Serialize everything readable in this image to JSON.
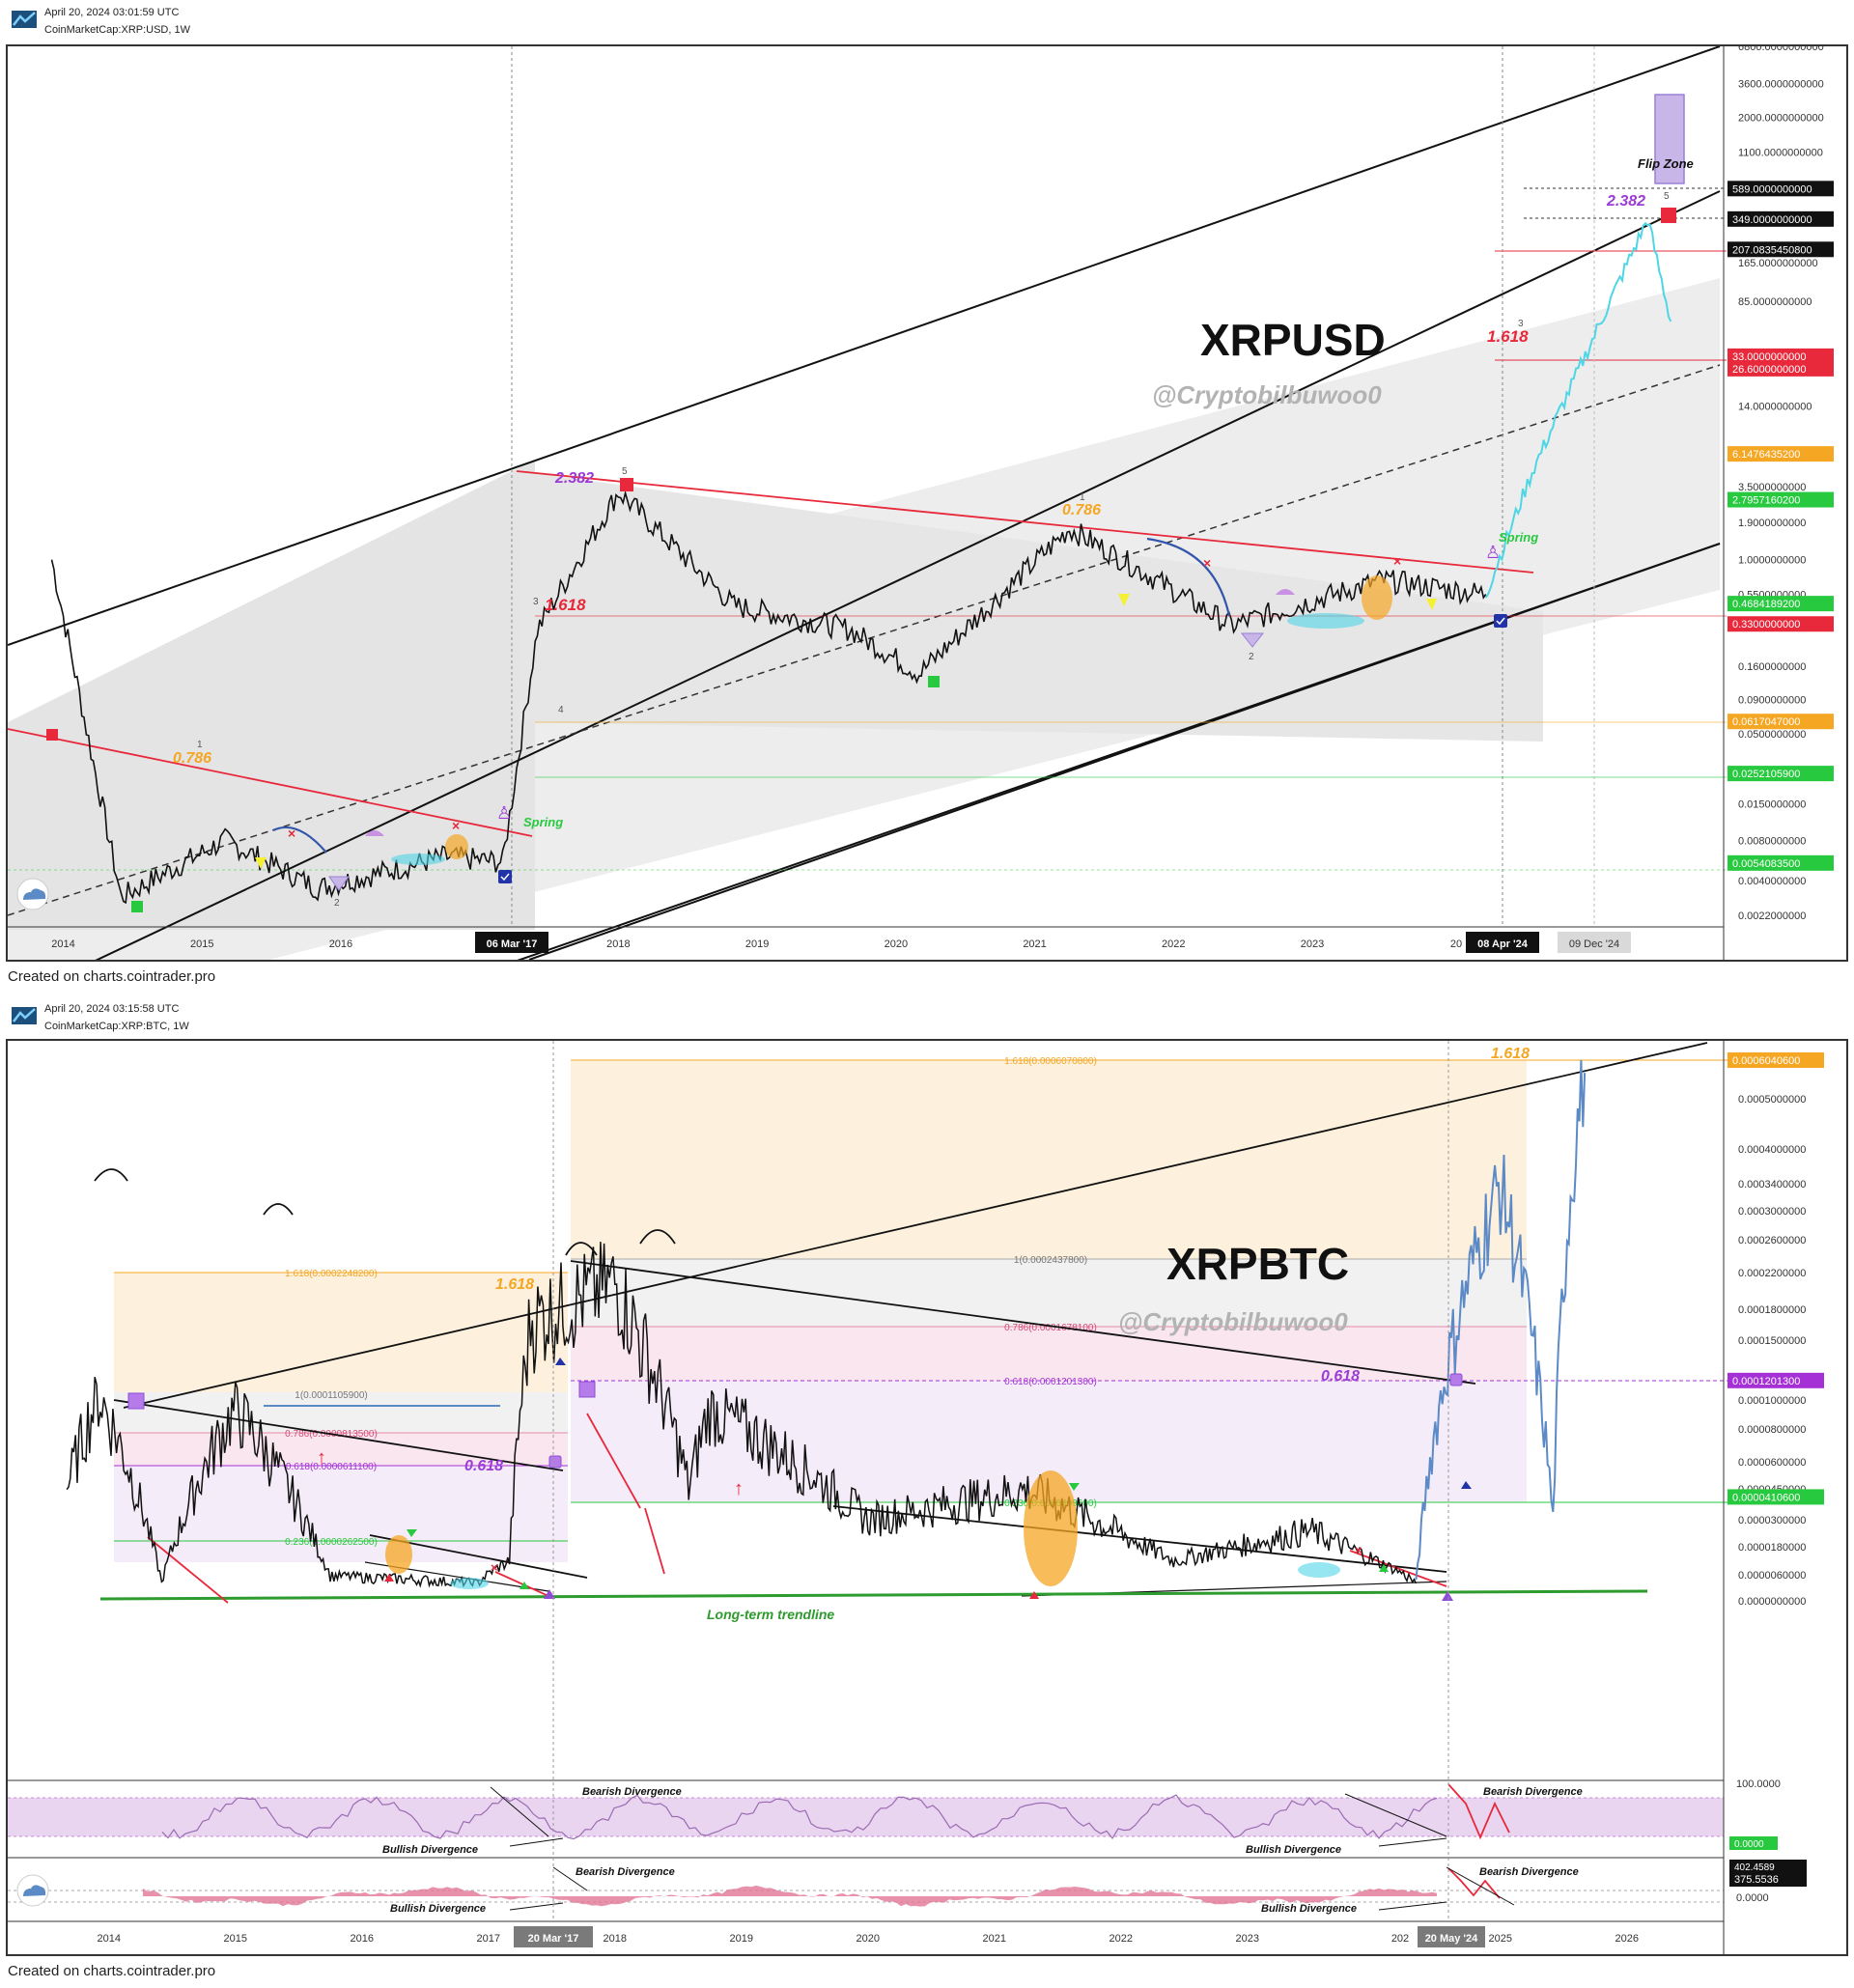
{
  "charts": [
    {
      "timestamp": "April 20, 2024 03:01:59 UTC",
      "symbol": "CoinMarketCap:XRP:USD, 1W",
      "watermark": "XRPUSD",
      "handle": "@Cryptobilbuwoo0",
      "footer": "Created on charts.cointrader.pro",
      "x_labels": [
        "2014",
        "2015",
        "2016",
        "2018",
        "2019",
        "2020",
        "2021",
        "2022",
        "2023"
      ],
      "x_label_partial": "20",
      "marker_labels": [
        "06 Mar '17",
        "08 Apr '24",
        "09 Dec '24"
      ],
      "y_labels": [
        "6800.0000000000",
        "3600.0000000000",
        "2000.0000000000",
        "1100.0000000000",
        "165.0000000000",
        "85.0000000000",
        "14.0000000000",
        "3.5000000000",
        "1.9000000000",
        "1.0000000000",
        "0.5500000000",
        "0.1600000000",
        "0.0900000000",
        "0.0500000000",
        "0.0150000000",
        "0.0080000000",
        "0.0040000000",
        "0.0022000000"
      ],
      "price_tags": [
        {
          "text": "589.0000000000",
          "color": "#111111"
        },
        {
          "text": "349.0000000000",
          "color": "#111111"
        },
        {
          "text": "207.0835450800",
          "color": "#111111"
        },
        {
          "text": "33.0000000000",
          "color": "#e8283b"
        },
        {
          "text": "26.6000000000",
          "color": "#e8283b"
        },
        {
          "text": "6.1476435200",
          "color": "#f5a623"
        },
        {
          "text": "2.7957160200",
          "color": "#27c93f"
        },
        {
          "text": "0.4684189200",
          "color": "#27c93f"
        },
        {
          "text": "0.3300000000",
          "color": "#e8283b"
        },
        {
          "text": "0.0617047000",
          "color": "#f5a623"
        },
        {
          "text": "0.0252105900",
          "color": "#27c93f"
        },
        {
          "text": "0.0054083500",
          "color": "#27c93f"
        }
      ],
      "annotations": {
        "fib_2382_a": "2.382",
        "fib_2382_b": "2.382",
        "fib_1618_a": "1.618",
        "fib_1618_b": "1.618",
        "fib_0786_a": "0.786",
        "fib_0786_b": "0.786",
        "spring_a": "Spring",
        "spring_b": "Spring",
        "flip_zone": "Flip Zone",
        "wave_1a": "1",
        "wave_2a": "2",
        "wave_3a": "3",
        "wave_4a": "4",
        "wave_5a": "5",
        "wave_1b": "1",
        "wave_2b": "2",
        "wave_3b": "3",
        "wave_5b": "5"
      },
      "chart_data": {
        "type": "line",
        "title": "XRPUSD",
        "scale": "log",
        "x": [
          "2013-12",
          "2014-06",
          "2015-03",
          "2015-11",
          "2016-10",
          "2017-03",
          "2017-06",
          "2018-01",
          "2018-11",
          "2019-09",
          "2020-03",
          "2021-04",
          "2021-09",
          "2022-06",
          "2023-07",
          "2024-04",
          "2024-08",
          "2025-06",
          "2025-08"
        ],
        "series": [
          {
            "values": [
              1.0,
              0.003,
              0.008,
              0.0035,
              0.006,
              0.0055,
              0.3,
              3.2,
              0.45,
              0.3,
              0.14,
              1.7,
              0.95,
              0.32,
              0.7,
              0.55,
              4.5,
              350,
              60
            ]
          }
        ],
        "ylim": [
          0.0022,
          6800
        ],
        "grid": false
      }
    },
    {
      "timestamp": "April 20, 2024 03:15:58 UTC",
      "symbol": "CoinMarketCap:XRP:BTC, 1W",
      "watermark": "XRPBTC",
      "handle": "@Cryptobilbuwoo0",
      "footer": "Created on charts.cointrader.pro",
      "x_labels": [
        "2014",
        "2015",
        "2016",
        "2017",
        "2018",
        "2019",
        "2020",
        "2021",
        "2022",
        "2023",
        "2025",
        "2026"
      ],
      "x_label_partial": "202",
      "marker_labels": [
        "20 Mar '17",
        "20 May '24"
      ],
      "y_labels": [
        "0.0005000000",
        "0.0004000000",
        "0.0003400000",
        "0.0003000000",
        "0.0002600000",
        "0.0002200000",
        "0.0001800000",
        "0.0001500000",
        "0.0001000000",
        "0.0000800000",
        "0.0000600000",
        "0.0000450000",
        "0.0000300000",
        "0.0000180000",
        "0.0000060000",
        "0.0000000000"
      ],
      "price_tags": [
        {
          "text": "0.0006040600",
          "color": "#f5a623"
        },
        {
          "text": "0.0001201300",
          "color": "#a531d6"
        },
        {
          "text": "0.0000410600",
          "color": "#27c93f"
        }
      ],
      "fib_lines": [
        {
          "text": "1.618(0.0006070800)",
          "color": "#f5a623"
        },
        {
          "text": "1(0.0002437800)",
          "color": "#777777"
        },
        {
          "text": "0.786(0.0001678100)",
          "color": "#d64a7a"
        },
        {
          "text": "0.618(0.0001201300)",
          "color": "#a531d6"
        },
        {
          "text": "0.236(0.0000409600)",
          "color": "#27c93f"
        },
        {
          "text": "1.618(0.0002248200)",
          "color": "#f5a623"
        },
        {
          "text": "1(0.0001105900)",
          "color": "#777777"
        },
        {
          "text": "0.786(0.0000813500)",
          "color": "#d64a7a"
        },
        {
          "text": "0.618(0.0000611100)",
          "color": "#a531d6"
        },
        {
          "text": "0.236(0.0000262500)",
          "color": "#27c93f"
        }
      ],
      "annotations": {
        "fib_1618_a": "1.618",
        "fib_1618_b": "1.618",
        "fib_0618_a": "0.618",
        "fib_0618_b": "0.618",
        "trendline": "Long-term trendline",
        "bearish_1": "Bearish Divergence",
        "bullish_1": "Bullish Divergence",
        "bearish_2": "Bearish Divergence",
        "bullish_2": "Bullish Divergence",
        "bearish_3": "Bearish Divergence",
        "bullish_3": "Bullish Divergence",
        "bearish_4": "Bearish Divergence",
        "bullish_4": "Bullish Divergence"
      },
      "rsi_labels": [
        "100.0000",
        "0.0000"
      ],
      "macd_labels": [
        "402.4589",
        "375.5536",
        "0.0000"
      ],
      "chart_data": {
        "type": "line",
        "title": "XRPBTC",
        "x": [
          "2013-09",
          "2013-12",
          "2014-06",
          "2015-01",
          "2015-10",
          "2016-12",
          "2017-03",
          "2017-05",
          "2018-01",
          "2018-08",
          "2018-10",
          "2020-01",
          "2021-04",
          "2022-06",
          "2023-07",
          "2024-05",
          "2024-08",
          "2025-01",
          "2025-06",
          "2025-09"
        ],
        "series": [
          {
            "values": [
              4.5e-05,
              0.000105,
              4e-06,
              9.5e-05,
              6e-06,
              4e-06,
              1.2e-05,
              0.00017,
              0.00021,
              4.6e-05,
              9.5e-05,
              3e-05,
              4.5e-05,
              1.2e-05,
              2.5e-05,
              4e-06,
              0.00013,
              0.00034,
              3e-05,
              0.00057
            ]
          }
        ],
        "ylim": [
          0,
          0.00062
        ],
        "grid": false
      }
    }
  ]
}
